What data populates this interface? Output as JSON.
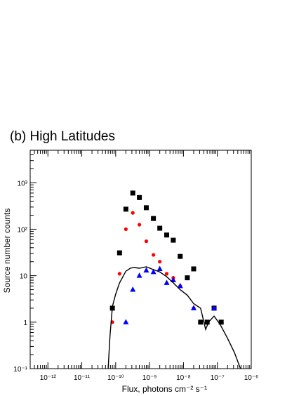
{
  "chart_data": {
    "type": "scatter",
    "title": "(b) High Latitudes",
    "xlabel": "Flux, photons   cm⁻² s⁻¹",
    "ylabel": "Source number counts",
    "xscale": "log",
    "yscale": "log",
    "xlim": [
      3e-13,
      1e-06
    ],
    "ylim": [
      0.1,
      5000
    ],
    "x_tick_labels": [
      "10⁻¹²",
      "10⁻¹¹",
      "10⁻¹⁰",
      "10⁻⁹",
      "10⁻⁸",
      "10⁻⁷",
      "10⁻⁶"
    ],
    "x_tick_values": [
      1e-12,
      1e-11,
      1e-10,
      1e-09,
      1e-08,
      1e-07,
      1e-06
    ],
    "y_tick_labels": [
      "10⁻¹",
      "1",
      "10",
      "10²",
      "10³"
    ],
    "y_tick_values": [
      0.1,
      1,
      10,
      100,
      1000
    ],
    "grid": false,
    "series": [
      {
        "marker": "square",
        "color": "#000000",
        "points": [
          {
            "x": 8e-11,
            "y": 2
          },
          {
            "x": 1.3e-10,
            "y": 31
          },
          {
            "x": 2e-10,
            "y": 270
          },
          {
            "x": 3.2e-10,
            "y": 600
          },
          {
            "x": 5e-10,
            "y": 480
          },
          {
            "x": 8e-10,
            "y": 290
          },
          {
            "x": 1.3e-09,
            "y": 170
          },
          {
            "x": 2e-09,
            "y": 105
          },
          {
            "x": 3.2e-09,
            "y": 75
          },
          {
            "x": 5e-09,
            "y": 58
          },
          {
            "x": 8e-09,
            "y": 26
          },
          {
            "x": 1.3e-08,
            "y": 9
          },
          {
            "x": 2e-08,
            "y": 14
          },
          {
            "x": 3.2e-08,
            "y": 1
          },
          {
            "x": 5e-08,
            "y": 1
          },
          {
            "x": 8e-08,
            "y": 2
          },
          {
            "x": 1.3e-07,
            "y": 1
          }
        ]
      },
      {
        "marker": "circle",
        "color": "#ff0000",
        "points": [
          {
            "x": 8e-11,
            "y": 1
          },
          {
            "x": 1.3e-10,
            "y": 11
          },
          {
            "x": 2e-10,
            "y": 100
          },
          {
            "x": 3.2e-10,
            "y": 225
          },
          {
            "x": 5e-10,
            "y": 125
          },
          {
            "x": 8e-10,
            "y": 55
          },
          {
            "x": 1.3e-09,
            "y": 28
          },
          {
            "x": 2e-09,
            "y": 20
          },
          {
            "x": 3.2e-09,
            "y": 11
          },
          {
            "x": 5e-09,
            "y": 9
          },
          {
            "x": 8e-09,
            "y": 6
          },
          {
            "x": 2e-08,
            "y": 2
          },
          {
            "x": 8e-08,
            "y": 2
          }
        ]
      },
      {
        "marker": "triangle",
        "color": "#0000ff",
        "points": [
          {
            "x": 2e-10,
            "y": 1
          },
          {
            "x": 3.2e-10,
            "y": 5
          },
          {
            "x": 5e-10,
            "y": 10
          },
          {
            "x": 8e-10,
            "y": 13
          },
          {
            "x": 1.3e-09,
            "y": 12
          },
          {
            "x": 2e-09,
            "y": 14
          },
          {
            "x": 3.2e-09,
            "y": 7
          },
          {
            "x": 5e-09,
            "y": 8
          },
          {
            "x": 8e-09,
            "y": 6
          },
          {
            "x": 2e-08,
            "y": 2
          },
          {
            "x": 8e-08,
            "y": 2
          }
        ]
      },
      {
        "marker": "line",
        "color": "#000000",
        "points": [
          {
            "x": 6e-11,
            "y": 0.1
          },
          {
            "x": 6.8e-11,
            "y": 0.5
          },
          {
            "x": 8e-11,
            "y": 2.2
          },
          {
            "x": 1e-10,
            "y": 4.0
          },
          {
            "x": 1.3e-10,
            "y": 7.0
          },
          {
            "x": 2e-10,
            "y": 12.5
          },
          {
            "x": 2.7e-10,
            "y": 14.5
          },
          {
            "x": 3.4e-10,
            "y": 15.0
          },
          {
            "x": 5e-10,
            "y": 14.5
          },
          {
            "x": 8e-10,
            "y": 15.5
          },
          {
            "x": 1.3e-09,
            "y": 13.5
          },
          {
            "x": 2e-09,
            "y": 12.0
          },
          {
            "x": 3.2e-09,
            "y": 9.5
          },
          {
            "x": 5e-09,
            "y": 7.0
          },
          {
            "x": 8e-09,
            "y": 5.0
          },
          {
            "x": 1.3e-08,
            "y": 3.8
          },
          {
            "x": 2e-08,
            "y": 2.5
          },
          {
            "x": 3.2e-08,
            "y": 2.0
          },
          {
            "x": 4.5e-08,
            "y": 0.7
          },
          {
            "x": 5.5e-08,
            "y": 1.0
          },
          {
            "x": 8e-08,
            "y": 1.35
          },
          {
            "x": 1.2e-07,
            "y": 0.9
          },
          {
            "x": 2e-07,
            "y": 0.45
          },
          {
            "x": 3.2e-07,
            "y": 0.22
          },
          {
            "x": 4.8e-07,
            "y": 0.1
          }
        ]
      }
    ]
  }
}
